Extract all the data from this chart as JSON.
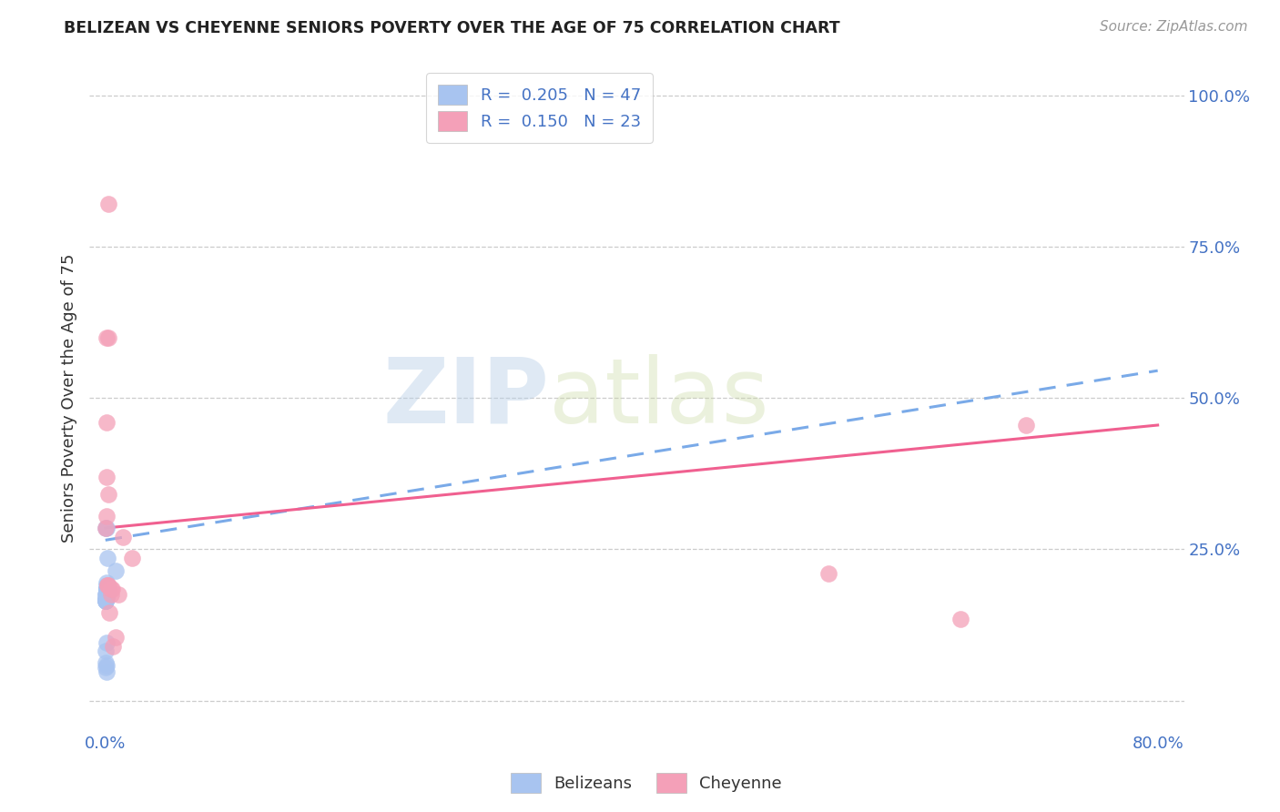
{
  "title": "BELIZEAN VS CHEYENNE SENIORS POVERTY OVER THE AGE OF 75 CORRELATION CHART",
  "source": "Source: ZipAtlas.com",
  "ylabel": "Seniors Poverty Over the Age of 75",
  "right_yticks": [
    0.0,
    0.25,
    0.5,
    0.75,
    1.0
  ],
  "right_yticklabels": [
    "",
    "25.0%",
    "50.0%",
    "75.0%",
    "100.0%"
  ],
  "belizean_R": "0.205",
  "belizean_N": "47",
  "cheyenne_R": "0.150",
  "cheyenne_N": "23",
  "belizean_color": "#a8c4f0",
  "cheyenne_color": "#f4a0b8",
  "belizean_line_color": "#7aaae8",
  "cheyenne_line_color": "#f06090",
  "watermark_zip": "ZIP",
  "watermark_atlas": "atlas",
  "belizean_line_x0": 0.0,
  "belizean_line_y0": 0.265,
  "belizean_line_x1": 0.8,
  "belizean_line_y1": 0.545,
  "cheyenne_line_x0": 0.0,
  "cheyenne_line_y0": 0.285,
  "cheyenne_line_x1": 0.8,
  "cheyenne_line_y1": 0.455,
  "belizean_x": [
    0.0005,
    0.001,
    0.0008,
    0.0015,
    0.001,
    0.0008,
    0.0018,
    0.001,
    0.0012,
    0.0006,
    0.0007,
    0.001,
    0.0013,
    0.0006,
    0.001,
    0.0005,
    0.0007,
    0.001,
    0.0006,
    0.0005,
    0.0007,
    0.0005,
    0.0006,
    0.0006,
    0.001,
    0.0005,
    0.0012,
    0.001,
    0.0009,
    0.0005,
    0.0005,
    0.0006,
    0.0005,
    0.0006,
    0.0005,
    0.0007,
    0.001,
    0.0007,
    0.0006,
    0.0005,
    0.0005,
    0.0006,
    0.0005,
    0.0009,
    0.0006,
    0.0005,
    0.008
  ],
  "belizean_y": [
    0.285,
    0.285,
    0.175,
    0.175,
    0.175,
    0.175,
    0.235,
    0.19,
    0.175,
    0.175,
    0.185,
    0.195,
    0.185,
    0.175,
    0.185,
    0.168,
    0.175,
    0.185,
    0.175,
    0.168,
    0.185,
    0.168,
    0.175,
    0.175,
    0.185,
    0.175,
    0.185,
    0.175,
    0.175,
    0.175,
    0.165,
    0.172,
    0.165,
    0.172,
    0.165,
    0.172,
    0.175,
    0.185,
    0.175,
    0.165,
    0.055,
    0.048,
    0.062,
    0.058,
    0.095,
    0.082,
    0.215
  ],
  "cheyenne_x": [
    0.0005,
    0.0007,
    0.001,
    0.001,
    0.001,
    0.0015,
    0.0015,
    0.002,
    0.002,
    0.0025,
    0.0025,
    0.003,
    0.004,
    0.004,
    0.005,
    0.006,
    0.0075,
    0.01,
    0.013,
    0.02,
    0.55,
    0.65,
    0.7
  ],
  "cheyenne_y": [
    0.285,
    0.305,
    0.6,
    0.46,
    0.37,
    0.19,
    0.19,
    0.82,
    0.6,
    0.34,
    0.19,
    0.145,
    0.185,
    0.175,
    0.185,
    0.09,
    0.105,
    0.175,
    0.27,
    0.235,
    0.21,
    0.135,
    0.455
  ],
  "xlim": [
    -0.012,
    0.82
  ],
  "ylim": [
    -0.05,
    1.05
  ]
}
